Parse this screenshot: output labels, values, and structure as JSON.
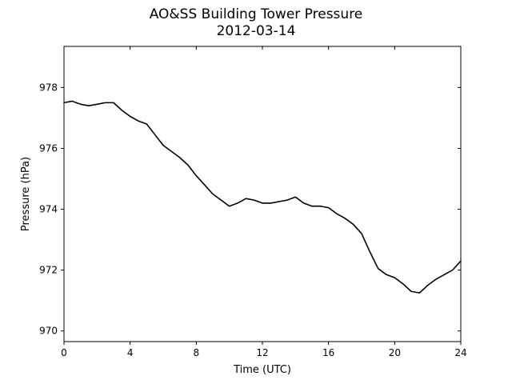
{
  "chart_data": {
    "type": "line",
    "title": "AO&SS Building Tower Pressure",
    "subtitle": "2012-03-14",
    "xlabel": "Time (UTC)",
    "ylabel": "Pressure (hPa)",
    "xlim": [
      0,
      24
    ],
    "ylim": [
      969.65,
      979.35
    ],
    "xticks": [
      0,
      4,
      8,
      12,
      16,
      20,
      24
    ],
    "yticks": [
      970,
      972,
      974,
      976,
      978
    ],
    "grid": false,
    "legend": "none",
    "line_color": "#000000",
    "series": [
      {
        "x": [
          0,
          0.5,
          1,
          1.5,
          2,
          2.5,
          3,
          3.5,
          4,
          4.5,
          5,
          5.5,
          6,
          6.5,
          7,
          7.5,
          8,
          8.5,
          9,
          9.5,
          10,
          10.5,
          11,
          11.5,
          12,
          12.5,
          13,
          13.5,
          14,
          14.5,
          15,
          15.5,
          16,
          16.5,
          17,
          17.5,
          18,
          18.5,
          19,
          19.5,
          20,
          20.5,
          21,
          21.5,
          22,
          22.5,
          23,
          23.5,
          24
        ],
        "y": [
          977.5,
          977.55,
          977.45,
          977.4,
          977.45,
          977.5,
          977.5,
          977.25,
          977.05,
          976.9,
          976.8,
          976.45,
          976.1,
          975.9,
          975.7,
          975.45,
          975.1,
          974.8,
          974.5,
          974.3,
          974.1,
          974.2,
          974.35,
          974.3,
          974.2,
          974.2,
          974.25,
          974.3,
          974.4,
          974.2,
          974.1,
          974.1,
          974.05,
          973.85,
          973.7,
          973.5,
          973.2,
          972.6,
          972.05,
          971.85,
          971.75,
          971.55,
          971.3,
          971.25,
          971.5,
          971.7,
          971.85,
          972.0,
          972.3
        ]
      }
    ]
  }
}
